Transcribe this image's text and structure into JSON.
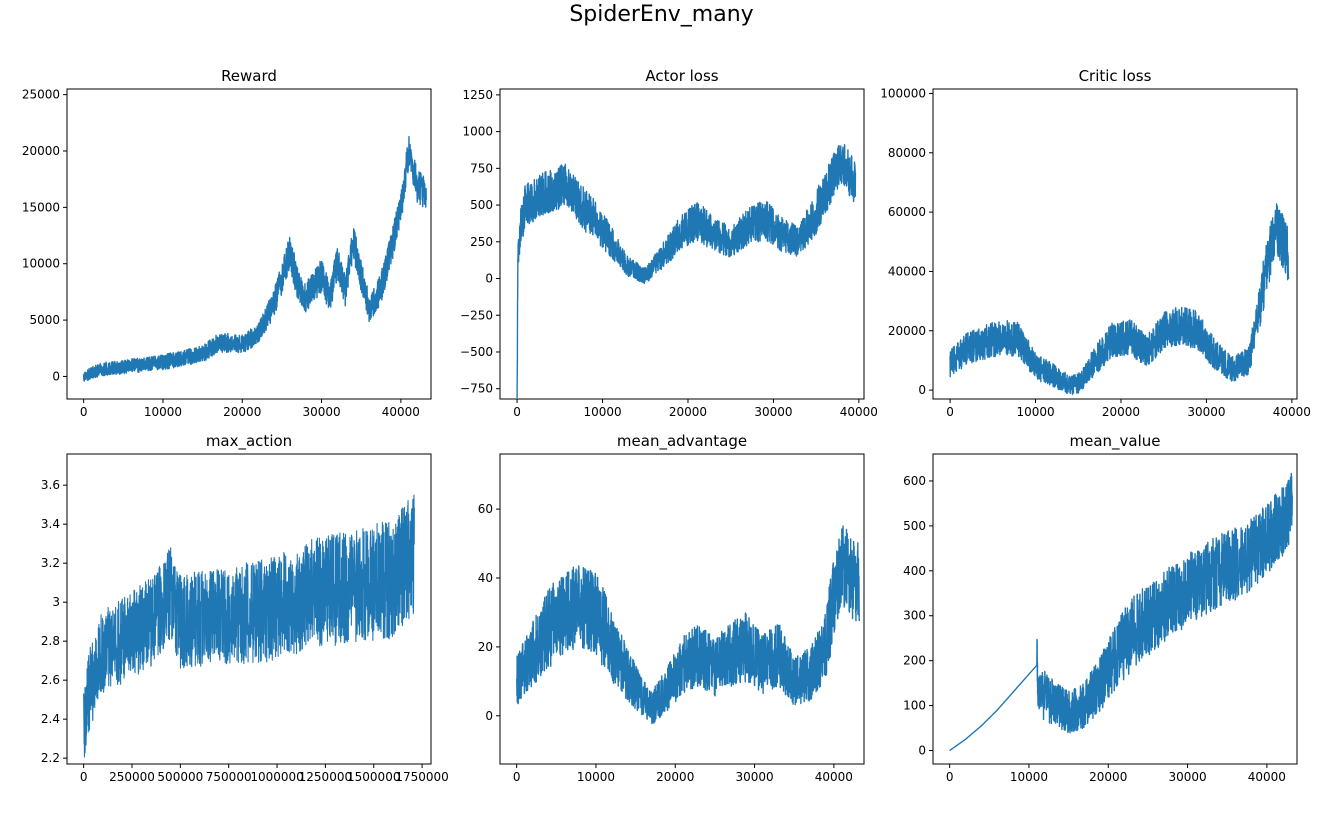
{
  "figure": {
    "title": "SpiderEnv_many"
  },
  "colors": {
    "series": "#1f77b4",
    "axes": "#000000",
    "background": "#ffffff"
  },
  "chart_data": [
    {
      "type": "line",
      "title": "Reward",
      "xlim": [
        -2100,
        43800
      ],
      "ylim": [
        -2000,
        25500
      ],
      "xticks": [
        0,
        10000,
        20000,
        30000,
        40000
      ],
      "yticks": [
        0,
        5000,
        10000,
        15000,
        20000,
        25000
      ],
      "series": [
        {
          "x_start": 0,
          "x_end": 43200,
          "amp": 1500,
          "points": [
            [
              0,
              0
            ],
            [
              2000,
              600
            ],
            [
              5000,
              850
            ],
            [
              10000,
              1250
            ],
            [
              15000,
              2000
            ],
            [
              17000,
              3000
            ],
            [
              20000,
              2900
            ],
            [
              22000,
              3700
            ],
            [
              24000,
              6500
            ],
            [
              26000,
              11000
            ],
            [
              27000,
              8200
            ],
            [
              28000,
              7000
            ],
            [
              30000,
              9000
            ],
            [
              31000,
              7000
            ],
            [
              32000,
              10000
            ],
            [
              33000,
              7500
            ],
            [
              34000,
              12000
            ],
            [
              35000,
              9000
            ],
            [
              36000,
              6000
            ],
            [
              37000,
              7000
            ],
            [
              38000,
              9000
            ],
            [
              39000,
              12000
            ],
            [
              40000,
              15000
            ],
            [
              41000,
              20000
            ],
            [
              42000,
              17000
            ],
            [
              43200,
              16000
            ]
          ]
        }
      ]
    },
    {
      "type": "line",
      "title": "Actor loss",
      "xlim": [
        -2000,
        40600
      ],
      "ylim": [
        -820,
        1290
      ],
      "xticks": [
        0,
        10000,
        20000,
        30000,
        40000
      ],
      "yticks": [
        -750,
        -500,
        -250,
        0,
        250,
        500,
        750,
        1000,
        1250
      ],
      "series": [
        {
          "x_start": 0,
          "x_end": 39600,
          "amp": 150,
          "points": [
            [
              0,
              -730
            ],
            [
              100,
              150
            ],
            [
              400,
              350
            ],
            [
              1000,
              500
            ],
            [
              3000,
              580
            ],
            [
              5000,
              620
            ],
            [
              6000,
              640
            ],
            [
              7000,
              520
            ],
            [
              9000,
              400
            ],
            [
              11000,
              250
            ],
            [
              13000,
              80
            ],
            [
              15000,
              20
            ],
            [
              17000,
              150
            ],
            [
              19000,
              300
            ],
            [
              21000,
              400
            ],
            [
              23000,
              300
            ],
            [
              25000,
              250
            ],
            [
              27000,
              350
            ],
            [
              29000,
              400
            ],
            [
              31000,
              300
            ],
            [
              33000,
              250
            ],
            [
              35000,
              450
            ],
            [
              37000,
              700
            ],
            [
              38000,
              800
            ],
            [
              39000,
              700
            ],
            [
              39600,
              650
            ]
          ]
        }
      ]
    },
    {
      "type": "line",
      "title": "Critic loss",
      "xlim": [
        -2000,
        40600
      ],
      "ylim": [
        -3000,
        101500
      ],
      "xticks": [
        0,
        10000,
        20000,
        30000,
        40000
      ],
      "yticks": [
        0,
        20000,
        40000,
        60000,
        80000,
        100000
      ],
      "series": [
        {
          "x_start": 0,
          "x_end": 39600,
          "amp": 9000,
          "points": [
            [
              0,
              9000
            ],
            [
              2000,
              14000
            ],
            [
              4000,
              16000
            ],
            [
              6000,
              18000
            ],
            [
              8000,
              17000
            ],
            [
              10000,
              8000
            ],
            [
              12000,
              5000
            ],
            [
              14000,
              1500
            ],
            [
              15000,
              2000
            ],
            [
              17000,
              10000
            ],
            [
              19000,
              17000
            ],
            [
              21000,
              18000
            ],
            [
              23000,
              13000
            ],
            [
              25000,
              20000
            ],
            [
              27000,
              22000
            ],
            [
              29000,
              20000
            ],
            [
              31000,
              12000
            ],
            [
              33000,
              7000
            ],
            [
              35000,
              10000
            ],
            [
              36000,
              25000
            ],
            [
              37000,
              40000
            ],
            [
              38000,
              55000
            ],
            [
              39000,
              50000
            ],
            [
              39600,
              45000
            ]
          ]
        }
      ]
    },
    {
      "type": "line",
      "title": "max_action",
      "xlim": [
        -86000,
        1796000
      ],
      "ylim": [
        2.17,
        3.76
      ],
      "xticks": [
        0,
        250000,
        500000,
        750000,
        1000000,
        1250000,
        1500000,
        1750000
      ],
      "yticks": [
        2.2,
        2.4,
        2.6,
        2.8,
        3.0,
        3.2,
        3.4,
        3.6
      ],
      "series": [
        {
          "x_start": 0,
          "x_end": 1710000,
          "amp": 0.26,
          "points": [
            [
              0,
              2.35
            ],
            [
              30000,
              2.55
            ],
            [
              100000,
              2.75
            ],
            [
              200000,
              2.8
            ],
            [
              350000,
              2.9
            ],
            [
              450000,
              3.05
            ],
            [
              500000,
              2.9
            ],
            [
              700000,
              2.93
            ],
            [
              900000,
              2.95
            ],
            [
              1000000,
              2.97
            ],
            [
              1200000,
              3.05
            ],
            [
              1400000,
              3.08
            ],
            [
              1600000,
              3.12
            ],
            [
              1710000,
              3.25
            ]
          ]
        }
      ]
    },
    {
      "type": "line",
      "title": "mean_advantage",
      "xlim": [
        -2100,
        43800
      ],
      "ylim": [
        -14,
        76
      ],
      "xticks": [
        0,
        10000,
        20000,
        30000,
        40000
      ],
      "yticks": [
        0,
        20,
        40,
        60
      ],
      "series": [
        {
          "x_start": 0,
          "x_end": 43200,
          "amp": 12,
          "points": [
            [
              0,
              10
            ],
            [
              2000,
              18
            ],
            [
              4000,
              25
            ],
            [
              6000,
              30
            ],
            [
              8000,
              32
            ],
            [
              10000,
              30
            ],
            [
              12000,
              20
            ],
            [
              14000,
              12
            ],
            [
              16000,
              5
            ],
            [
              17000,
              2
            ],
            [
              19000,
              8
            ],
            [
              21000,
              15
            ],
            [
              23000,
              18
            ],
            [
              25000,
              14
            ],
            [
              27000,
              18
            ],
            [
              29000,
              20
            ],
            [
              31000,
              15
            ],
            [
              33000,
              18
            ],
            [
              35000,
              10
            ],
            [
              37000,
              12
            ],
            [
              39000,
              20
            ],
            [
              40000,
              35
            ],
            [
              41000,
              45
            ],
            [
              42000,
              40
            ],
            [
              43200,
              38
            ]
          ]
        }
      ]
    },
    {
      "type": "line",
      "title": "mean_value",
      "xlim": [
        -2100,
        43800
      ],
      "ylim": [
        -30,
        660
      ],
      "xticks": [
        0,
        10000,
        20000,
        30000,
        40000
      ],
      "yticks": [
        0,
        100,
        200,
        300,
        400,
        500,
        600
      ],
      "series": [
        {
          "x_start": 0,
          "x_end": 43200,
          "amp": 80,
          "quiet_until": 11000,
          "points": [
            [
              0,
              0
            ],
            [
              2000,
              25
            ],
            [
              4000,
              55
            ],
            [
              6000,
              90
            ],
            [
              8000,
              130
            ],
            [
              10000,
              170
            ],
            [
              11000,
              190
            ],
            [
              11200,
              130
            ],
            [
              13000,
              110
            ],
            [
              15000,
              85
            ],
            [
              17000,
              100
            ],
            [
              19000,
              150
            ],
            [
              21000,
              210
            ],
            [
              23000,
              260
            ],
            [
              25000,
              290
            ],
            [
              27000,
              320
            ],
            [
              29000,
              345
            ],
            [
              31000,
              370
            ],
            [
              33000,
              390
            ],
            [
              35000,
              410
            ],
            [
              37000,
              420
            ],
            [
              39000,
              450
            ],
            [
              41000,
              490
            ],
            [
              43200,
              540
            ]
          ]
        }
      ]
    }
  ]
}
